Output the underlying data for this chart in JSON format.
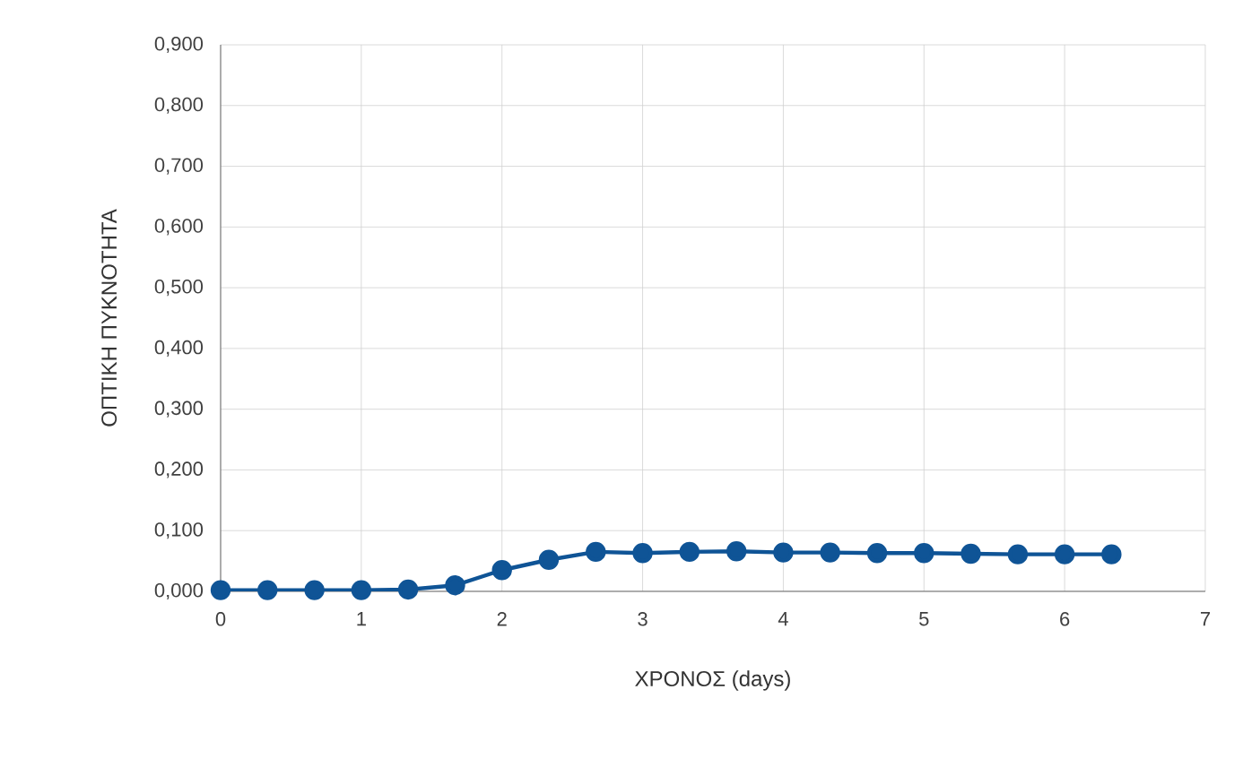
{
  "chart_data": {
    "type": "line",
    "xlabel": "ΧΡΟΝΟΣ (days)",
    "ylabel": "ΟΠΤΙΚΗ ΠΥΚΝΟΤΗΤΑ",
    "x": [
      0,
      0.333,
      0.667,
      1,
      1.333,
      1.667,
      2,
      2.333,
      2.667,
      3,
      3.333,
      3.667,
      4,
      4.333,
      4.667,
      5,
      5.333,
      5.667,
      6,
      6.333
    ],
    "series": [
      {
        "color": "#0f5496",
        "values": [
          0.002,
          0.002,
          0.002,
          0.002,
          0.003,
          0.01,
          0.035,
          0.052,
          0.065,
          0.063,
          0.065,
          0.066,
          0.064,
          0.064,
          0.063,
          0.063,
          0.062,
          0.061,
          0.061,
          0.061
        ]
      }
    ],
    "xlim": [
      0,
      7
    ],
    "xticks": [
      0,
      1,
      2,
      3,
      4,
      5,
      6,
      7
    ],
    "ylim": [
      0,
      0.9
    ],
    "yticks": [
      {
        "value": 0,
        "label": "0,000"
      },
      {
        "value": 0.1,
        "label": "0,100"
      },
      {
        "value": 0.2,
        "label": "0,200"
      },
      {
        "value": 0.3,
        "label": "0,300"
      },
      {
        "value": 0.4,
        "label": "0,400"
      },
      {
        "value": 0.5,
        "label": "0,500"
      },
      {
        "value": 0.6,
        "label": "0,600"
      },
      {
        "value": 0.7,
        "label": "0,700"
      },
      {
        "value": 0.8,
        "label": "0,800"
      },
      {
        "value": 0.9,
        "label": "0,900"
      }
    ],
    "grid": true,
    "marker": "circle",
    "line_style": "solid"
  }
}
